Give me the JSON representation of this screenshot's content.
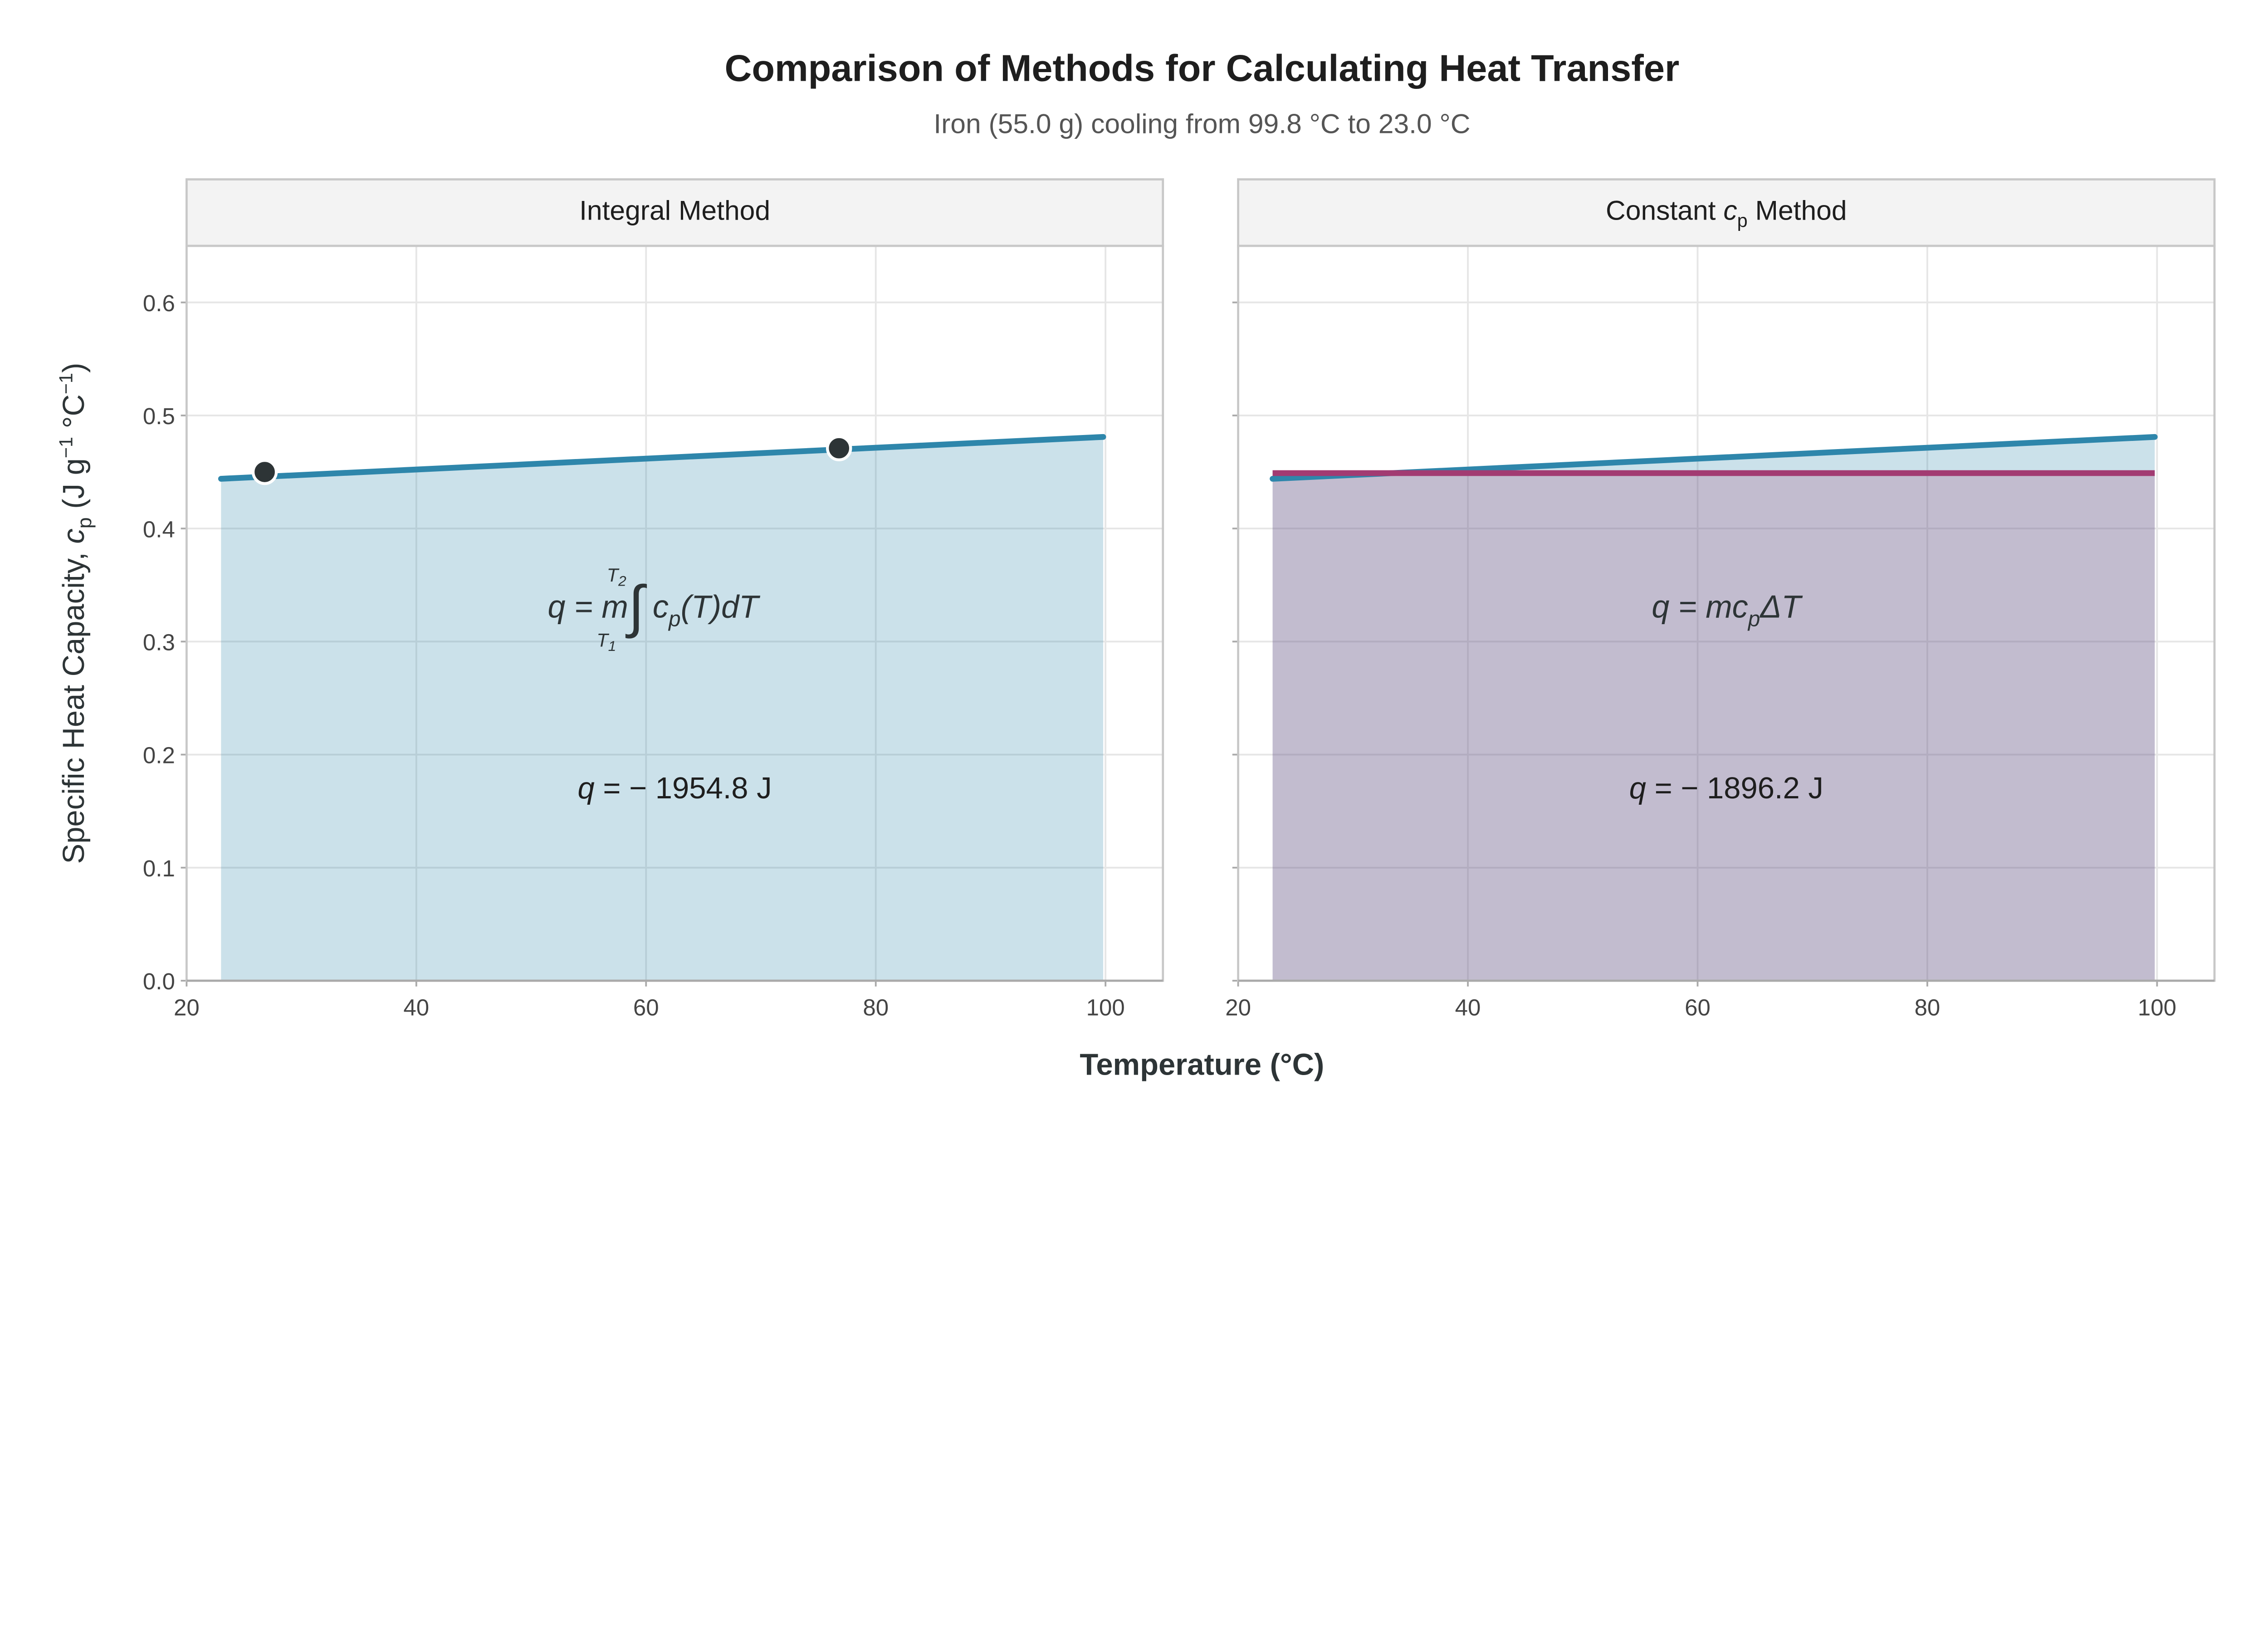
{
  "chart_data": {
    "title": "Comparison of Methods for Calculating Heat Transfer",
    "subtitle": "Iron (55.0 g) cooling from 99.8 °C to 23.0 °C",
    "xlabel": "Temperature (°C)",
    "ylabel": "Specific Heat Capacity, c_p (J g⁻¹ °C⁻¹)",
    "xlim": [
      20,
      105
    ],
    "ylim": [
      0,
      0.65
    ],
    "xticks": [
      20,
      40,
      60,
      80,
      100
    ],
    "yticks": [
      0.0,
      0.1,
      0.2,
      0.3,
      0.4,
      0.5,
      0.6
    ],
    "ytick_labels": [
      "0.0",
      "0.1",
      "0.2",
      "0.3",
      "0.4",
      "0.5",
      "0.6"
    ],
    "grid": true,
    "colors": {
      "integral": "#2E86AB",
      "integral_fill": "#CAE1E9",
      "constant": "#A23B72",
      "constant_fill": "#E8CDDB",
      "points": "#2D3436"
    },
    "panels": [
      {
        "label": "Integral Method",
        "type": "area",
        "cp_line": {
          "x": [
            23.0,
            99.8
          ],
          "y": [
            0.444,
            0.481
          ]
        },
        "points": {
          "x": [
            26.8,
            76.8
          ],
          "y": [
            0.45,
            0.471
          ]
        },
        "equation": "q = m∫c_p(T)dT",
        "result": "q = − 1954.8 J"
      },
      {
        "label": "Constant c_p Method",
        "type": "area",
        "cp_line": {
          "x": [
            23.0,
            99.8
          ],
          "y": [
            0.444,
            0.481
          ]
        },
        "constant_cp": {
          "x": [
            23.0,
            99.8
          ],
          "y": 0.449
        },
        "equation": "q = mc_pΔT",
        "result": "q = − 1896.2 J"
      }
    ]
  }
}
